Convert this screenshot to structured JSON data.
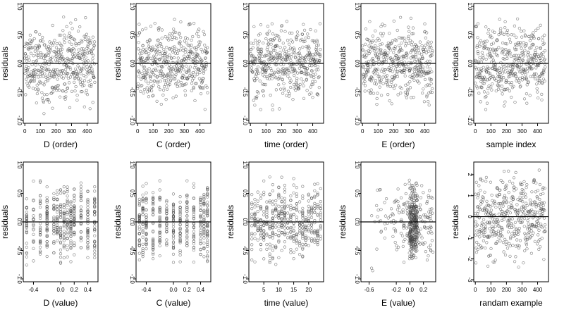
{
  "chart_data": [
    {
      "type": "scatter",
      "xlabel": "D (order)",
      "ylabel": "residuals",
      "xlim": [
        -10,
        470
      ],
      "ylim": [
        -1.05,
        1.05
      ],
      "xticks": [
        0,
        100,
        200,
        300,
        400
      ],
      "xtick_labels": [
        "0",
        "100",
        "200",
        "300",
        "400"
      ],
      "yticks": [
        -1,
        -0.5,
        0,
        0.5,
        1
      ],
      "ytick_labels": [
        "-1.0",
        "-0.5",
        "0.0",
        "0.5",
        "1.0"
      ],
      "ref_y": 0,
      "n_points": 450,
      "x_mode": "order",
      "seed": 11
    },
    {
      "type": "scatter",
      "xlabel": "C (order)",
      "ylabel": "residuals",
      "xlim": [
        -10,
        470
      ],
      "ylim": [
        -1.05,
        1.05
      ],
      "xticks": [
        0,
        100,
        200,
        300,
        400
      ],
      "xtick_labels": [
        "0",
        "100",
        "200",
        "300",
        "400"
      ],
      "yticks": [
        -1,
        -0.5,
        0,
        0.5,
        1
      ],
      "ytick_labels": [
        "-1.0",
        "-0.5",
        "0.0",
        "0.5",
        "1.0"
      ],
      "ref_y": 0,
      "n_points": 450,
      "x_mode": "order",
      "seed": 23
    },
    {
      "type": "scatter",
      "xlabel": "time (order)",
      "ylabel": "residuals",
      "xlim": [
        -10,
        470
      ],
      "ylim": [
        -1.05,
        1.05
      ],
      "xticks": [
        0,
        100,
        200,
        300,
        400
      ],
      "xtick_labels": [
        "0",
        "100",
        "200",
        "300",
        "400"
      ],
      "yticks": [
        -1,
        -0.5,
        0,
        0.5,
        1
      ],
      "ytick_labels": [
        "-1.0",
        "-0.5",
        "0.0",
        "0.5",
        "1.0"
      ],
      "ref_y": 0,
      "n_points": 450,
      "x_mode": "order",
      "seed": 37
    },
    {
      "type": "scatter",
      "xlabel": "E (order)",
      "ylabel": "residuals",
      "xlim": [
        -10,
        470
      ],
      "ylim": [
        -1.05,
        1.05
      ],
      "xticks": [
        0,
        100,
        200,
        300,
        400
      ],
      "xtick_labels": [
        "0",
        "100",
        "200",
        "300",
        "400"
      ],
      "yticks": [
        -1,
        -0.5,
        0,
        0.5,
        1
      ],
      "ytick_labels": [
        "-1.0",
        "-0.5",
        "0.0",
        "0.5",
        "1.0"
      ],
      "ref_y": 0,
      "n_points": 450,
      "x_mode": "order",
      "seed": 41
    },
    {
      "type": "scatter",
      "xlabel": "sample index",
      "ylabel": "residuals",
      "xlim": [
        -10,
        470
      ],
      "ylim": [
        -1.05,
        1.05
      ],
      "xticks": [
        0,
        100,
        200,
        300,
        400
      ],
      "xtick_labels": [
        "0",
        "100",
        "200",
        "300",
        "400"
      ],
      "yticks": [
        -1,
        -0.5,
        0,
        0.5,
        1
      ],
      "ytick_labels": [
        "-1.0",
        "-0.5",
        "0.0",
        "0.5",
        "1.0"
      ],
      "ref_y": 0,
      "n_points": 450,
      "x_mode": "order",
      "seed": 53
    },
    {
      "type": "scatter",
      "xlabel": "D (value)",
      "ylabel": "residuals",
      "xlim": [
        -0.55,
        0.55
      ],
      "ylim": [
        -1.05,
        1.05
      ],
      "xticks": [
        -0.4,
        0,
        0.2,
        0.4
      ],
      "xtick_labels": [
        "-0.4",
        "0.0",
        "0.2",
        "0.4"
      ],
      "yticks": [
        -1,
        -0.5,
        0,
        0.5,
        1
      ],
      "ytick_labels": [
        "-1.0",
        "-0.5",
        "0.0",
        "0.5",
        "1.0"
      ],
      "ref_y": 0,
      "n_points": 450,
      "x_mode": "discrete",
      "x_levels": [
        -0.5,
        -0.4,
        -0.3,
        -0.2,
        -0.1,
        -0.05,
        0,
        0.05,
        0.1,
        0.15,
        0.2,
        0.3,
        0.4,
        0.5
      ],
      "seed": 61
    },
    {
      "type": "scatter",
      "xlabel": "C (value)",
      "ylabel": "residuals",
      "xlim": [
        -0.55,
        0.55
      ],
      "ylim": [
        -1.05,
        1.05
      ],
      "xticks": [
        -0.4,
        0,
        0.2,
        0.4
      ],
      "xtick_labels": [
        "-0.4",
        "0.0",
        "0.2",
        "0.4"
      ],
      "yticks": [
        -1,
        -0.5,
        0,
        0.5,
        1
      ],
      "ytick_labels": [
        "-1.0",
        "-0.5",
        "0.0",
        "0.5",
        "1.0"
      ],
      "ref_y": 0,
      "n_points": 450,
      "x_mode": "discrete",
      "x_levels": [
        -0.5,
        -0.45,
        -0.4,
        -0.3,
        -0.2,
        -0.1,
        0,
        0.1,
        0.2,
        0.3,
        0.4,
        0.45,
        0.5
      ],
      "seed": 71
    },
    {
      "type": "scatter",
      "xlabel": "time (value)",
      "ylabel": "residuals",
      "xlim": [
        0,
        25
      ],
      "ylim": [
        -1.05,
        1.05
      ],
      "xticks": [
        5,
        10,
        15,
        20
      ],
      "xtick_labels": [
        "5",
        "10",
        "15",
        "20"
      ],
      "yticks": [
        -1,
        -0.5,
        0,
        0.5,
        1
      ],
      "ytick_labels": [
        "-1.0",
        "-0.5",
        "0.0",
        "0.5",
        "1.0"
      ],
      "ref_y": 0,
      "n_points": 450,
      "x_mode": "discrete",
      "x_levels": [
        1,
        2,
        3,
        4,
        5,
        6,
        7,
        8,
        9,
        10,
        11,
        12,
        13,
        14,
        15,
        16,
        17,
        18,
        19,
        20,
        21,
        22,
        23,
        24
      ],
      "seed": 83
    },
    {
      "type": "scatter",
      "xlabel": "E (value)",
      "ylabel": "residuals",
      "xlim": [
        -0.72,
        0.38
      ],
      "ylim": [
        -1.05,
        1.05
      ],
      "xticks": [
        -0.6,
        -0.2,
        0,
        0.2
      ],
      "xtick_labels": [
        "-0.6",
        "-0.2",
        "0.0",
        "0.2"
      ],
      "yticks": [
        -1,
        -0.5,
        0,
        0.5,
        1
      ],
      "ytick_labels": [
        "-1.0",
        "-0.5",
        "0.0",
        "0.5",
        "1.0"
      ],
      "ref_y": 0,
      "n_points": 450,
      "x_mode": "continuous_skewed",
      "seed": 97
    },
    {
      "type": "scatter",
      "xlabel": "randam example",
      "ylabel": "residuals",
      "xlim": [
        -10,
        470
      ],
      "ylim": [
        -3.1,
        2.6
      ],
      "xticks": [
        0,
        100,
        200,
        300,
        400
      ],
      "xtick_labels": [
        "0",
        "100",
        "200",
        "300",
        "400"
      ],
      "yticks": [
        -3,
        -2,
        -1,
        0,
        1,
        2
      ],
      "ytick_labels": [
        "-3",
        "-2",
        "-1",
        "0",
        "1",
        "2"
      ],
      "ref_y": 0,
      "n_points": 450,
      "x_mode": "order_gauss",
      "seed": 101
    }
  ]
}
